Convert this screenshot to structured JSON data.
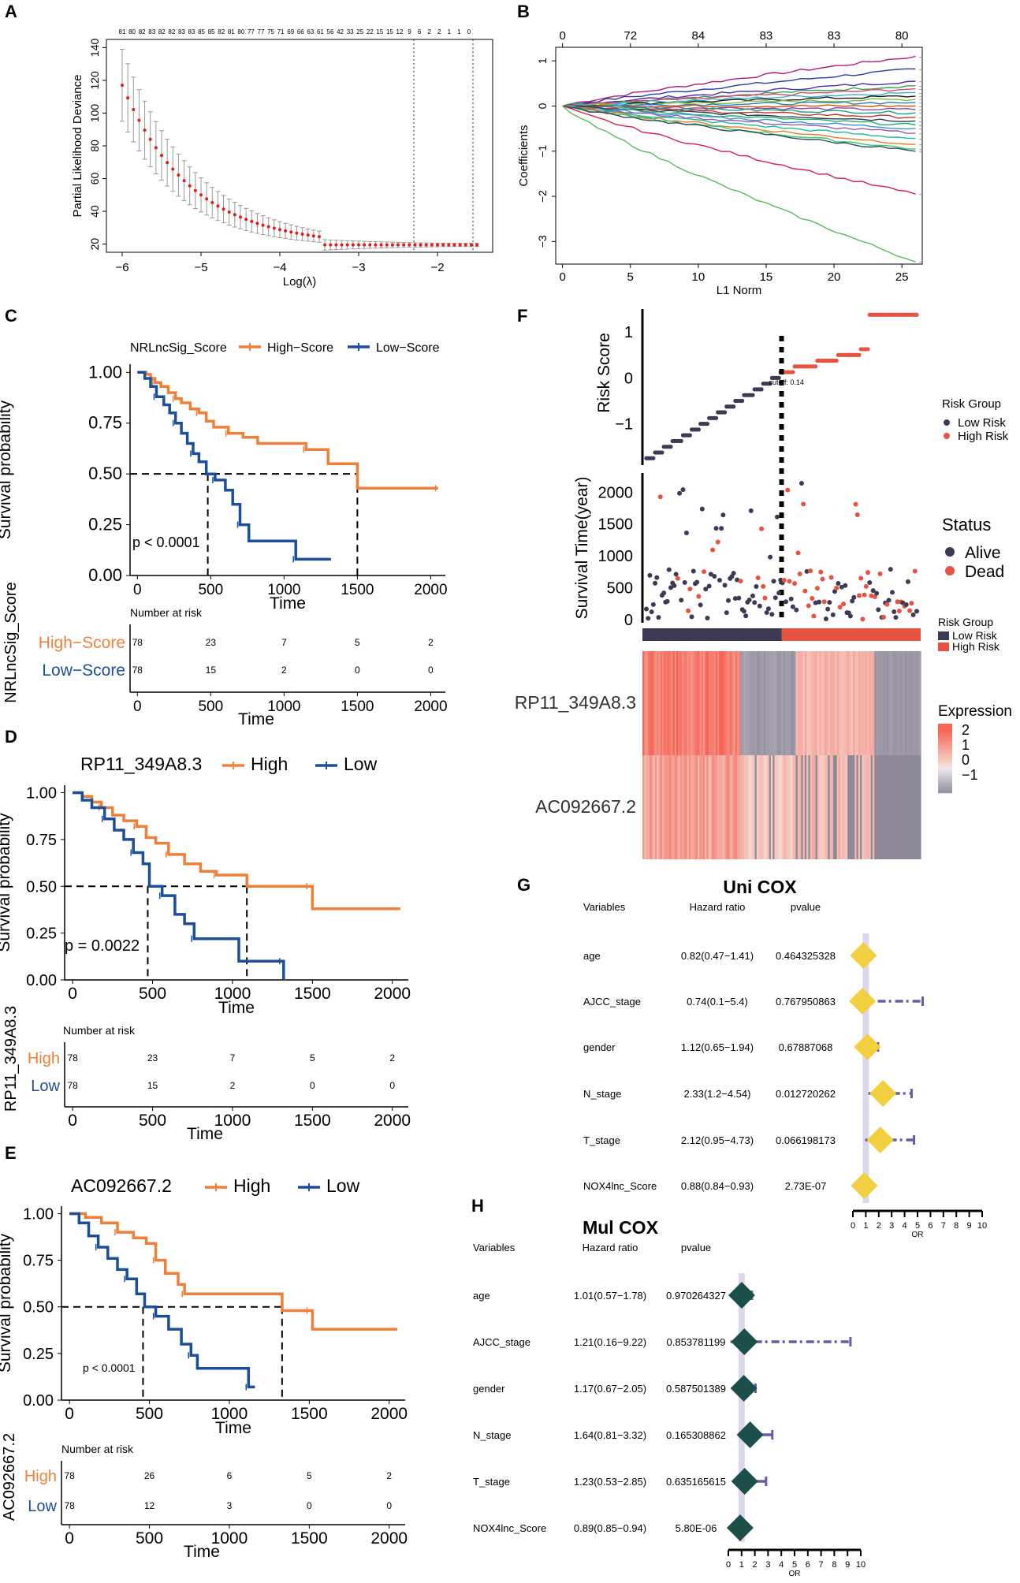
{
  "chart_data": [
    {
      "panel": "A",
      "type": "scatter",
      "title": "",
      "xlabel": "Log(λ)",
      "ylabel": "Partial Likelihood Deviance",
      "xlim": [
        -6.2,
        -1.3
      ],
      "ylim": [
        15,
        145
      ],
      "x_ticks": [
        -6,
        -5,
        -4,
        -3,
        -2
      ],
      "y_ticks": [
        20,
        40,
        60,
        80,
        100,
        120,
        140
      ],
      "top_counts": [
        "81",
        "80",
        "82",
        "83",
        "82",
        "82",
        "83",
        "83",
        "85",
        "85",
        "82",
        "81",
        "80",
        "77",
        "77",
        "75",
        "71",
        "69",
        "66",
        "63",
        "61",
        "56",
        "42",
        "33",
        "25",
        "22",
        "15",
        "15",
        "12",
        "9",
        "6",
        "2",
        "2",
        "1",
        "1",
        "0"
      ],
      "vlines": [
        -2.3,
        -1.55
      ],
      "series": [
        {
          "name": "cv-mean",
          "color": "#e41a1c",
          "error_color": "#999999"
        }
      ]
    },
    {
      "panel": "B",
      "type": "line",
      "xlabel": "L1 Norm",
      "ylabel": "Coefficients",
      "xlim": [
        -0.5,
        26.5
      ],
      "ylim": [
        -3.5,
        1.3
      ],
      "x_ticks": [
        0,
        5,
        10,
        15,
        20,
        25
      ],
      "y_ticks": [
        -3,
        -2,
        -1,
        0,
        1
      ],
      "top_ticks": [
        "0",
        "72",
        "84",
        "83",
        "83",
        "80"
      ],
      "series": [
        {
          "name": "path-1",
          "end": 1.1,
          "color": "#b3187d"
        },
        {
          "name": "path-2",
          "end": 0.82,
          "color": "#2b3da6"
        },
        {
          "name": "path-3",
          "end": 0.55,
          "color": "#4c2db0"
        },
        {
          "name": "path-4",
          "end": 0.45,
          "color": "#2ea84b"
        },
        {
          "name": "path-5",
          "end": 0.38,
          "color": "#e0427a"
        },
        {
          "name": "path-6",
          "end": 0.3,
          "color": "#35b6c9"
        },
        {
          "name": "path-7",
          "end": 0.22,
          "color": "#1a1a1a"
        },
        {
          "name": "path-8",
          "end": 0.15,
          "color": "#7fbf3f"
        },
        {
          "name": "path-9",
          "end": 0.08,
          "color": "#2980b9"
        },
        {
          "name": "path-10",
          "end": 0.0,
          "color": "#d35400"
        },
        {
          "name": "path-11",
          "end": -0.08,
          "color": "#8e44ad"
        },
        {
          "name": "path-12",
          "end": -0.15,
          "color": "#16a085"
        },
        {
          "name": "path-13",
          "end": -0.25,
          "color": "#c0392b"
        },
        {
          "name": "path-14",
          "end": -0.33,
          "color": "#2c3e50"
        },
        {
          "name": "path-15",
          "end": -0.42,
          "color": "#27ae60"
        },
        {
          "name": "path-16",
          "end": -0.5,
          "color": "#3498db"
        },
        {
          "name": "path-17",
          "end": -0.6,
          "color": "#9b59b6"
        },
        {
          "name": "path-18",
          "end": -0.72,
          "color": "#1abc9c"
        },
        {
          "name": "path-19",
          "end": -0.85,
          "color": "#e67e22"
        },
        {
          "name": "path-20",
          "end": -0.95,
          "color": "#2ecc71"
        },
        {
          "name": "path-21",
          "end": -1.0,
          "color": "#34495e"
        },
        {
          "name": "path-22",
          "end": -1.95,
          "color": "#d6204a"
        },
        {
          "name": "path-23",
          "end": -3.45,
          "color": "#5cb85c"
        }
      ]
    },
    {
      "panel": "C",
      "type": "line",
      "legend_title": "NRLncSig_Score",
      "legend": [
        "High−Score",
        "Low−Score"
      ],
      "xlabel": "Time",
      "ylabel": "Survival probability",
      "xlim": [
        -50,
        2100
      ],
      "ylim": [
        0,
        1.04
      ],
      "x_ticks": [
        0,
        500,
        1000,
        1500,
        2000
      ],
      "y_ticks": [
        "0.00",
        "0.25",
        "0.50",
        "0.75",
        "1.00"
      ],
      "pvalue": "p < 0.0001",
      "median_times": [
        480,
        1500
      ],
      "series": [
        {
          "name": "High-Score",
          "color": "#f07f3a",
          "points": [
            [
              0,
              1.0
            ],
            [
              60,
              0.99
            ],
            [
              90,
              0.97
            ],
            [
              120,
              0.95
            ],
            [
              160,
              0.93
            ],
            [
              210,
              0.9
            ],
            [
              260,
              0.87
            ],
            [
              300,
              0.85
            ],
            [
              360,
              0.82
            ],
            [
              420,
              0.8
            ],
            [
              470,
              0.76
            ],
            [
              520,
              0.73
            ],
            [
              620,
              0.7
            ],
            [
              720,
              0.68
            ],
            [
              820,
              0.65
            ],
            [
              1150,
              0.62
            ],
            [
              1300,
              0.55
            ],
            [
              1500,
              0.43
            ],
            [
              2050,
              0.43
            ]
          ]
        },
        {
          "name": "Low-Score",
          "color": "#1b4f9c",
          "points": [
            [
              0,
              1.0
            ],
            [
              50,
              0.97
            ],
            [
              90,
              0.93
            ],
            [
              130,
              0.88
            ],
            [
              180,
              0.84
            ],
            [
              220,
              0.8
            ],
            [
              260,
              0.75
            ],
            [
              300,
              0.7
            ],
            [
              340,
              0.65
            ],
            [
              380,
              0.6
            ],
            [
              420,
              0.56
            ],
            [
              470,
              0.5
            ],
            [
              530,
              0.47
            ],
            [
              600,
              0.42
            ],
            [
              650,
              0.35
            ],
            [
              700,
              0.25
            ],
            [
              760,
              0.17
            ],
            [
              1050,
              0.17
            ],
            [
              1080,
              0.08
            ],
            [
              1320,
              0.08
            ]
          ]
        }
      ],
      "risk_table": {
        "title": "Number at risk",
        "ylabel": "NRLncSig_Score",
        "rows": [
          {
            "label": "High−Score",
            "color": "#f07f3a",
            "values": [
              "78",
              "23",
              "7",
              "5",
              "2"
            ]
          },
          {
            "label": "Low−Score",
            "color": "#1b4f9c",
            "values": [
              "78",
              "15",
              "2",
              "0",
              "0"
            ]
          }
        ],
        "xlabel": "Time"
      }
    },
    {
      "panel": "D",
      "type": "line",
      "legend_title": "RP11_349A8.3",
      "legend": [
        "High",
        "Low"
      ],
      "xlabel": "Time",
      "ylabel": "Survival probability",
      "xlim": [
        -50,
        2100
      ],
      "ylim": [
        0,
        1.04
      ],
      "x_ticks": [
        0,
        500,
        1000,
        1500,
        2000
      ],
      "y_ticks": [
        "0.00",
        "0.25",
        "0.50",
        "0.75",
        "1.00"
      ],
      "pvalue": "p = 0.0022",
      "median_times": [
        470,
        1090
      ],
      "series": [
        {
          "name": "High",
          "color": "#f07f3a",
          "points": [
            [
              0,
              1.0
            ],
            [
              60,
              0.98
            ],
            [
              120,
              0.95
            ],
            [
              180,
              0.92
            ],
            [
              250,
              0.88
            ],
            [
              320,
              0.85
            ],
            [
              400,
              0.82
            ],
            [
              460,
              0.76
            ],
            [
              520,
              0.73
            ],
            [
              600,
              0.67
            ],
            [
              700,
              0.62
            ],
            [
              800,
              0.58
            ],
            [
              900,
              0.56
            ],
            [
              1080,
              0.56
            ],
            [
              1090,
              0.5
            ],
            [
              1480,
              0.5
            ],
            [
              1500,
              0.38
            ],
            [
              2050,
              0.38
            ]
          ]
        },
        {
          "name": "Low",
          "color": "#1b4f9c",
          "points": [
            [
              0,
              1.0
            ],
            [
              60,
              0.96
            ],
            [
              120,
              0.92
            ],
            [
              200,
              0.86
            ],
            [
              260,
              0.8
            ],
            [
              320,
              0.75
            ],
            [
              380,
              0.68
            ],
            [
              440,
              0.62
            ],
            [
              480,
              0.5
            ],
            [
              560,
              0.45
            ],
            [
              640,
              0.35
            ],
            [
              700,
              0.3
            ],
            [
              760,
              0.22
            ],
            [
              1000,
              0.22
            ],
            [
              1040,
              0.1
            ],
            [
              1310,
              0.1
            ],
            [
              1320,
              0.0
            ]
          ]
        }
      ],
      "risk_table": {
        "title": "Number at risk",
        "ylabel": "RP11_349A8.3",
        "rows": [
          {
            "label": "High",
            "color": "#f07f3a",
            "values": [
              "78",
              "23",
              "7",
              "5",
              "2"
            ]
          },
          {
            "label": "Low",
            "color": "#1b4f9c",
            "values": [
              "78",
              "15",
              "2",
              "0",
              "0"
            ]
          }
        ],
        "xlabel": "Time"
      }
    },
    {
      "panel": "E",
      "type": "line",
      "legend_title": "AC092667.2",
      "legend": [
        "High",
        "Low"
      ],
      "xlabel": "Time",
      "ylabel": "Survival probability",
      "xlim": [
        -50,
        2100
      ],
      "ylim": [
        0,
        1.04
      ],
      "x_ticks": [
        0,
        500,
        1000,
        1500,
        2000
      ],
      "y_ticks": [
        "0.00",
        "0.25",
        "0.50",
        "0.75",
        "1.00"
      ],
      "pvalue": "p < 0.0001",
      "median_times": [
        460,
        1330
      ],
      "series": [
        {
          "name": "High",
          "color": "#f07f3a",
          "points": [
            [
              0,
              1.0
            ],
            [
              100,
              0.98
            ],
            [
              200,
              0.95
            ],
            [
              300,
              0.9
            ],
            [
              400,
              0.87
            ],
            [
              480,
              0.84
            ],
            [
              540,
              0.75
            ],
            [
              600,
              0.68
            ],
            [
              680,
              0.62
            ],
            [
              720,
              0.57
            ],
            [
              1320,
              0.57
            ],
            [
              1330,
              0.48
            ],
            [
              1500,
              0.48
            ],
            [
              1520,
              0.38
            ],
            [
              2050,
              0.38
            ]
          ]
        },
        {
          "name": "Low",
          "color": "#1b4f9c",
          "points": [
            [
              0,
              1.0
            ],
            [
              60,
              0.95
            ],
            [
              120,
              0.88
            ],
            [
              180,
              0.82
            ],
            [
              240,
              0.76
            ],
            [
              300,
              0.7
            ],
            [
              360,
              0.65
            ],
            [
              420,
              0.57
            ],
            [
              470,
              0.5
            ],
            [
              540,
              0.45
            ],
            [
              620,
              0.38
            ],
            [
              700,
              0.3
            ],
            [
              760,
              0.24
            ],
            [
              800,
              0.17
            ],
            [
              1080,
              0.17
            ],
            [
              1120,
              0.07
            ],
            [
              1160,
              0.07
            ]
          ]
        }
      ],
      "risk_table": {
        "title": "Number at risk",
        "ylabel": "AC092667.2",
        "rows": [
          {
            "label": "High",
            "color": "#f07f3a",
            "values": [
              "78",
              "26",
              "6",
              "5",
              "2"
            ]
          },
          {
            "label": "Low",
            "color": "#1b4f9c",
            "values": [
              "78",
              "12",
              "3",
              "0",
              "0"
            ]
          }
        ],
        "xlabel": "Time"
      }
    },
    {
      "panel": "F",
      "type": "scatter",
      "risk_score": {
        "ylabel": "Risk Score",
        "y_ticks": [
          "−1",
          "0",
          "1"
        ],
        "ylim": [
          -1.9,
          1.5
        ],
        "cutoff_label": "cutoff: 0.14",
        "n_patients": 156,
        "cutoff_index": 78,
        "legend_title": "Risk Group",
        "legend": [
          "Low Risk",
          "High Risk"
        ],
        "colors": [
          "#3d3a55",
          "#e8533f"
        ]
      },
      "survival": {
        "ylabel": "Survival Time(year)",
        "y_ticks": [
          "0",
          "500",
          "1000",
          "1500",
          "2000"
        ],
        "ylim": [
          -50,
          2300
        ],
        "legend_title": "Status",
        "legend": [
          "Alive",
          "Dead"
        ],
        "colors": [
          "#3d3a55",
          "#e8533f"
        ]
      },
      "heatmap": {
        "legend_title": "Risk Group",
        "legend": [
          "Low Risk",
          "High Risk"
        ],
        "rows": [
          "RP11_349A8.3",
          "AC092667.2"
        ],
        "expression_title": "Expression",
        "expression_ticks": [
          "2",
          "1",
          "0",
          "−1"
        ]
      }
    },
    {
      "panel": "G",
      "type": "table",
      "title": "Uni COX",
      "columns": [
        "Variables",
        "Hazard ratio",
        "pvalue"
      ],
      "rows": [
        {
          "variable": "age",
          "hr": "0.82(0.47−1.41)",
          "p": "0.464325328",
          "est": 0.82,
          "lo": 0.47,
          "hi": 1.41
        },
        {
          "variable": "AJCC_stage",
          "hr": "0.74(0.1−5.4)",
          "p": "0.767950863",
          "est": 0.74,
          "lo": 0.1,
          "hi": 5.4
        },
        {
          "variable": "gender",
          "hr": "1.12(0.65−1.94)",
          "p": "0.67887068",
          "est": 1.12,
          "lo": 0.65,
          "hi": 1.94
        },
        {
          "variable": "N_stage",
          "hr": "2.33(1.2−4.54)",
          "p": "0.012720262",
          "est": 2.33,
          "lo": 1.2,
          "hi": 4.54
        },
        {
          "variable": "T_stage",
          "hr": "2.12(0.95−4.73)",
          "p": "0.066198173",
          "est": 2.12,
          "lo": 0.95,
          "hi": 4.73
        },
        {
          "variable": "NOX4lnc_Score",
          "hr": "0.88(0.84−0.93)",
          "p": "2.73E-07",
          "est": 0.88,
          "lo": 0.84,
          "hi": 0.93
        }
      ],
      "xlabel": "OR",
      "x_ticks": [
        "0",
        "1",
        "2",
        "3",
        "4",
        "5",
        "6",
        "7",
        "8",
        "9",
        "10"
      ],
      "marker_color": "#f2cf3f",
      "ci_color": "#6a5aa8"
    },
    {
      "panel": "H",
      "type": "table",
      "title": "Mul COX",
      "columns": [
        "Variables",
        "Hazard ratio",
        "pvalue"
      ],
      "rows": [
        {
          "variable": "age",
          "hr": "1.01(0.57−1.78)",
          "p": "0.970264327",
          "est": 1.01,
          "lo": 0.57,
          "hi": 1.78
        },
        {
          "variable": "AJCC_stage",
          "hr": "1.21(0.16−9.22)",
          "p": "0.853781199",
          "est": 1.21,
          "lo": 0.16,
          "hi": 9.22
        },
        {
          "variable": "gender",
          "hr": "1.17(0.67−2.05)",
          "p": "0.587501389",
          "est": 1.17,
          "lo": 0.67,
          "hi": 2.05
        },
        {
          "variable": "N_stage",
          "hr": "1.64(0.81−3.32)",
          "p": "0.165308862",
          "est": 1.64,
          "lo": 0.81,
          "hi": 3.32
        },
        {
          "variable": "T_stage",
          "hr": "1.23(0.53−2.85)",
          "p": "0.635165615",
          "est": 1.23,
          "lo": 0.53,
          "hi": 2.85
        },
        {
          "variable": "NOX4lnc_Score",
          "hr": "0.89(0.85−0.94)",
          "p": "5.80E-06",
          "est": 0.89,
          "lo": 0.85,
          "hi": 0.94
        }
      ],
      "xlabel": "OR",
      "x_ticks": [
        "0",
        "1",
        "2",
        "3",
        "4",
        "5",
        "6",
        "7",
        "8",
        "9",
        "10"
      ],
      "marker_color": "#1d4f4a",
      "ci_color": "#6a5aa8"
    }
  ]
}
